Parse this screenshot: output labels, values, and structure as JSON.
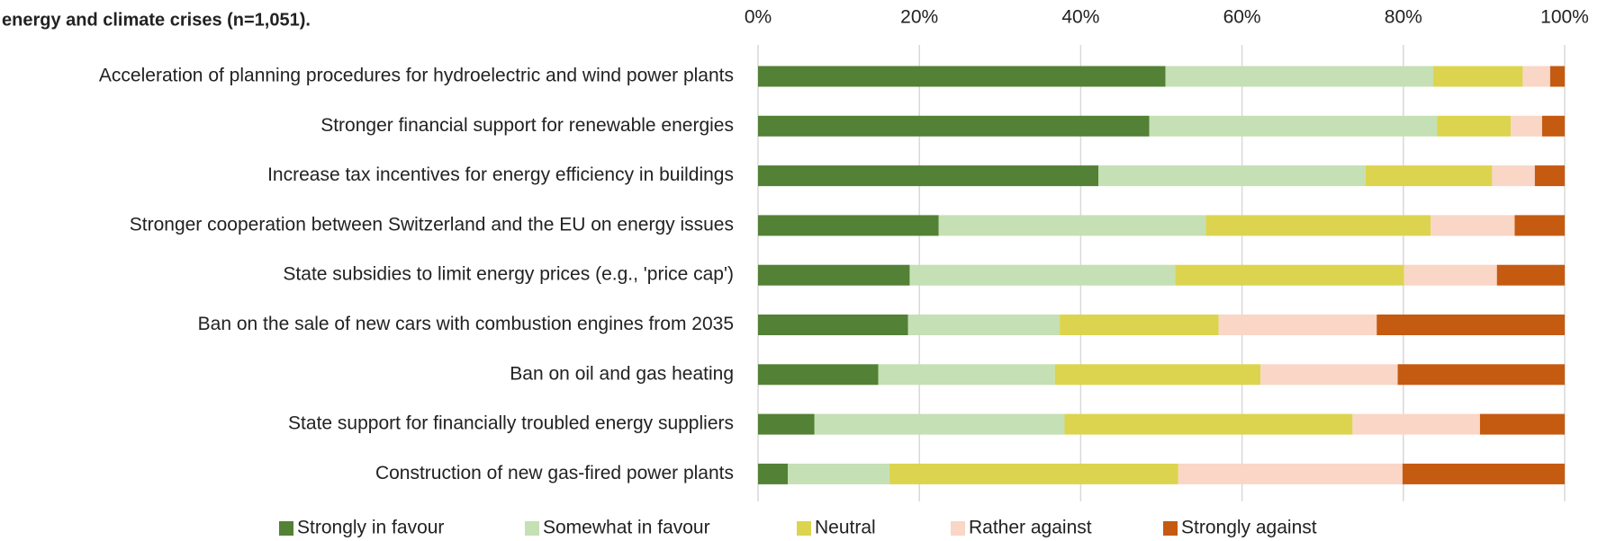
{
  "chart_data": {
    "type": "bar",
    "orientation": "horizontal",
    "stacked": true,
    "title": "energy and climate crises (n=1,051).",
    "categories": [
      "Acceleration of planning procedures for hydroelectric and wind power plants",
      "Stronger financial support for renewable energies",
      "Increase tax incentives for energy efficiency in buildings",
      "Stronger cooperation between Switzerland and the EU on energy issues",
      "State subsidies to limit energy prices (e.g., 'price cap')",
      "Ban on the sale of new cars with combustion engines from 2035",
      "Ban on oil and gas heating",
      "State support for financially troubled energy suppliers",
      "Construction of new gas-fired power plants"
    ],
    "series": [
      {
        "name": "Strongly in favour",
        "color": "#538135",
        "values": [
          50.5,
          48.5,
          42.2,
          22.4,
          18.8,
          18.6,
          14.9,
          7.0,
          3.7
        ]
      },
      {
        "name": "Somewhat in favour",
        "color": "#c5e0b4",
        "values": [
          33.2,
          35.7,
          33.1,
          33.1,
          32.9,
          18.8,
          21.9,
          31.0,
          12.6
        ]
      },
      {
        "name": "Neutral",
        "color": "#dcd44e",
        "values": [
          11.1,
          9.1,
          15.7,
          27.9,
          28.4,
          19.7,
          25.5,
          35.7,
          35.8
        ]
      },
      {
        "name": "Rather against",
        "color": "#f9d6c6",
        "values": [
          3.4,
          3.9,
          5.3,
          10.4,
          11.5,
          19.6,
          17.0,
          15.8,
          27.8
        ]
      },
      {
        "name": "Strongly against",
        "color": "#c55a11",
        "values": [
          1.8,
          2.8,
          3.7,
          6.2,
          8.4,
          23.3,
          20.7,
          10.5,
          20.1
        ]
      }
    ],
    "xlim": [
      0,
      100
    ],
    "xticks": [
      {
        "value": 0,
        "label": "0%"
      },
      {
        "value": 20,
        "label": "20%"
      },
      {
        "value": 40,
        "label": "40%"
      },
      {
        "value": 60,
        "label": "60%"
      },
      {
        "value": 80,
        "label": "80%"
      },
      {
        "value": 100,
        "label": "100%"
      }
    ],
    "grid": true,
    "legend": "bottom"
  }
}
